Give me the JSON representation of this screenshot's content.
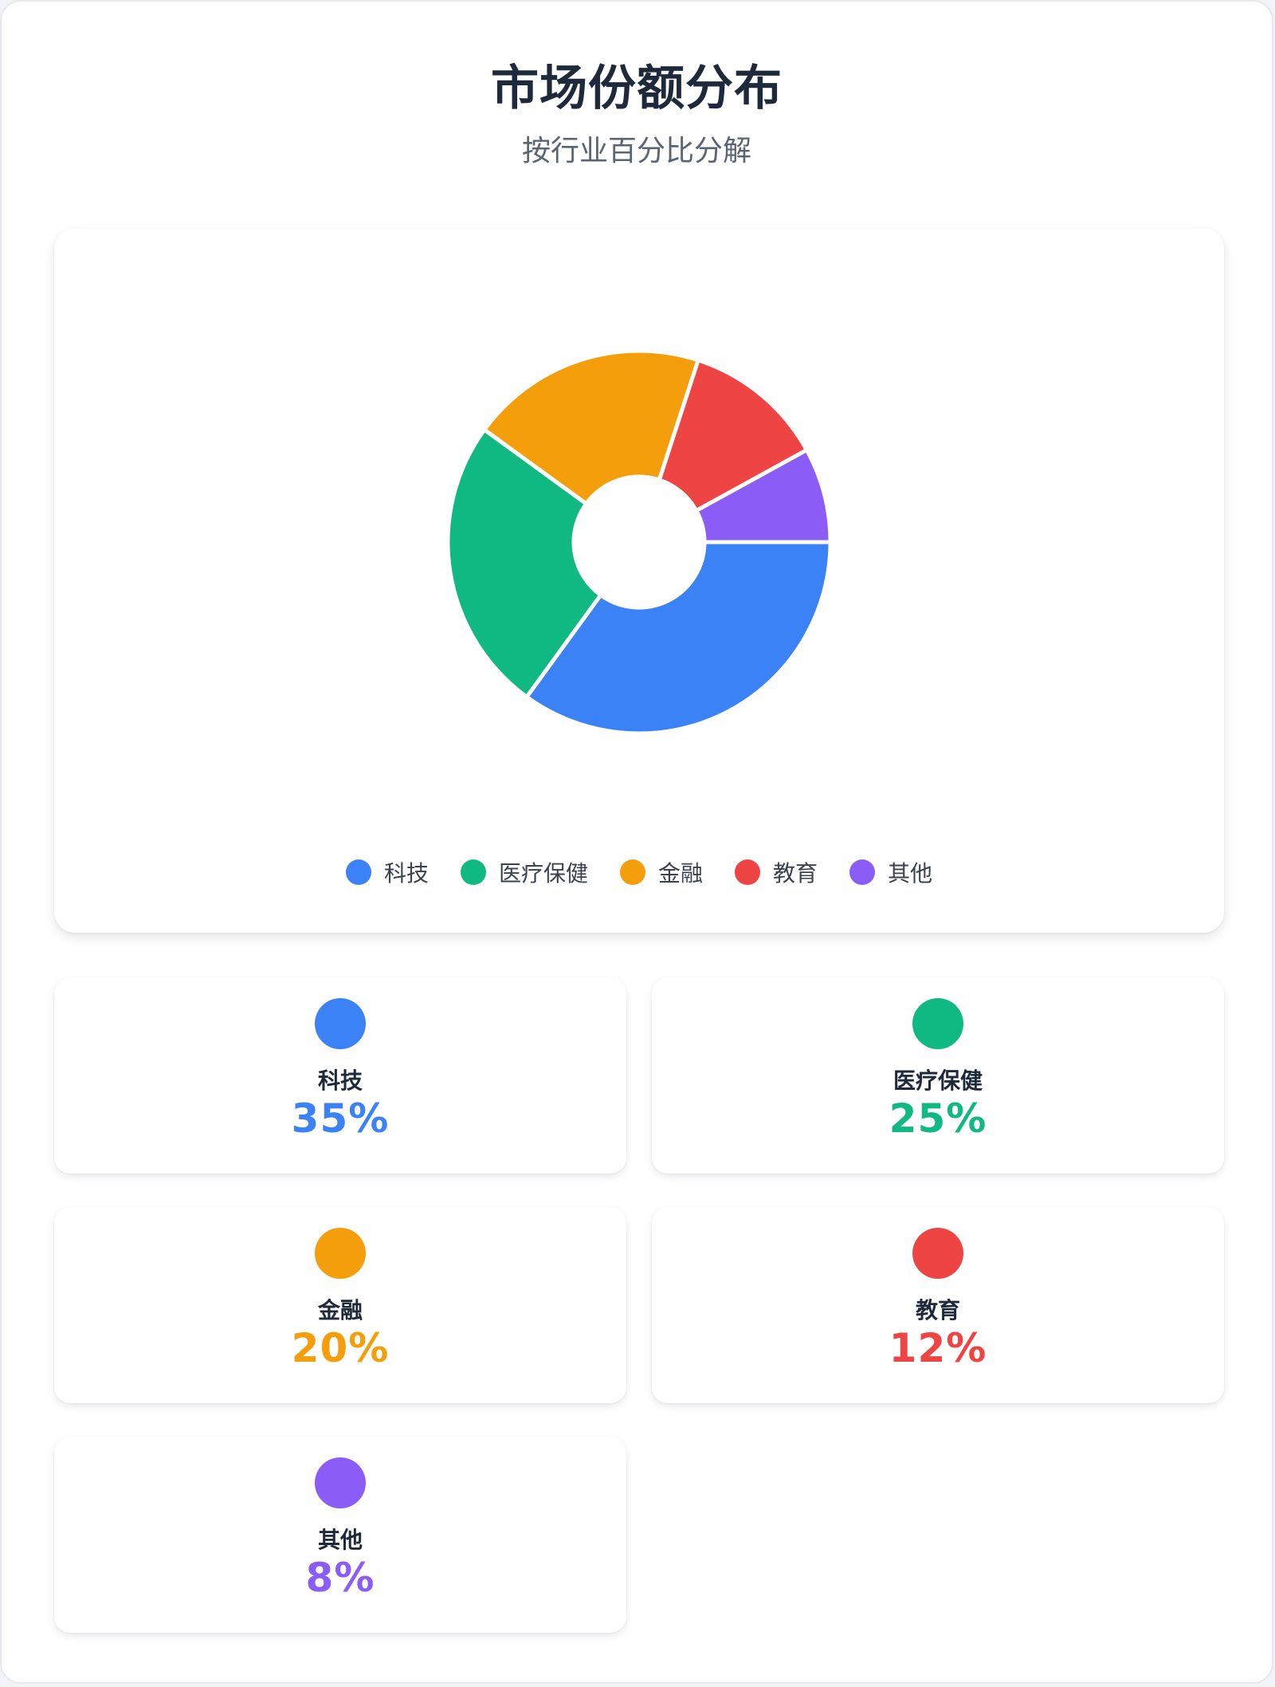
{
  "header": {
    "title": "市场份额分布",
    "subtitle": "按行业百分比分解"
  },
  "colors": {
    "tech": "#3b82f6",
    "healthcare": "#10b981",
    "finance": "#f59e0b",
    "education": "#ef4444",
    "other": "#8b5cf6"
  },
  "chart_data": {
    "type": "pie",
    "donut": true,
    "title": "市场份额分布",
    "subtitle": "按行业百分比分解",
    "categories": [
      "科技",
      "医疗保健",
      "金融",
      "教育",
      "其他"
    ],
    "values": [
      35,
      25,
      20,
      12,
      8
    ],
    "unit": "%",
    "colors": [
      "#3b82f6",
      "#10b981",
      "#f59e0b",
      "#ef4444",
      "#8b5cf6"
    ],
    "legend": "bottom"
  },
  "legend": [
    {
      "label": "科技",
      "color": "#3b82f6"
    },
    {
      "label": "医疗保健",
      "color": "#10b981"
    },
    {
      "label": "金融",
      "color": "#f59e0b"
    },
    {
      "label": "教育",
      "color": "#ef4444"
    },
    {
      "label": "其他",
      "color": "#8b5cf6"
    }
  ],
  "stats": [
    {
      "name": "科技",
      "value": "35%",
      "color": "#3b82f6"
    },
    {
      "name": "医疗保健",
      "value": "25%",
      "color": "#10b981"
    },
    {
      "name": "金融",
      "value": "20%",
      "color": "#f59e0b"
    },
    {
      "name": "教育",
      "value": "12%",
      "color": "#ef4444"
    },
    {
      "name": "其他",
      "value": "8%",
      "color": "#8b5cf6"
    }
  ]
}
